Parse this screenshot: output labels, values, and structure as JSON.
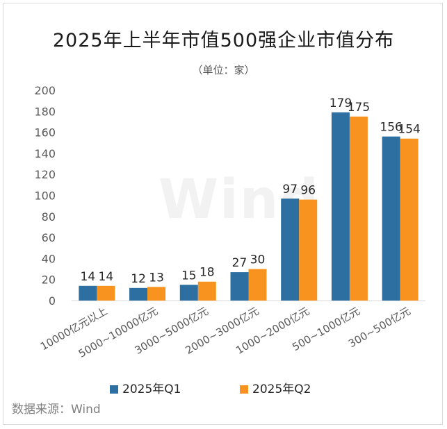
{
  "title": "2025年上半年市值500强企业市值分布",
  "subtitle": "（单位：家）",
  "source": "数据来源：Wind",
  "watermark": "Wind",
  "colors": {
    "q1": "#2c6fa0",
    "q2": "#f7931e"
  },
  "chart_data": {
    "type": "bar",
    "title": "2025年上半年市值500强企业市值分布",
    "subtitle": "（单位：家）",
    "categories": [
      "10000亿元以上",
      "5000~10000亿元",
      "3000~5000亿元",
      "2000~3000亿元",
      "1000~2000亿元",
      "500~1000亿元",
      "300~500亿元"
    ],
    "series": [
      {
        "name": "2025年Q1",
        "values": [
          14,
          12,
          15,
          27,
          97,
          179,
          156
        ]
      },
      {
        "name": "2025年Q2",
        "values": [
          14,
          13,
          18,
          30,
          96,
          175,
          154
        ]
      }
    ],
    "yticks": [
      "0",
      "20",
      "40",
      "60",
      "80",
      "100",
      "120",
      "140",
      "160",
      "180",
      "200"
    ],
    "ylim": [
      0,
      200
    ],
    "grid": false,
    "legend": "bottom"
  }
}
